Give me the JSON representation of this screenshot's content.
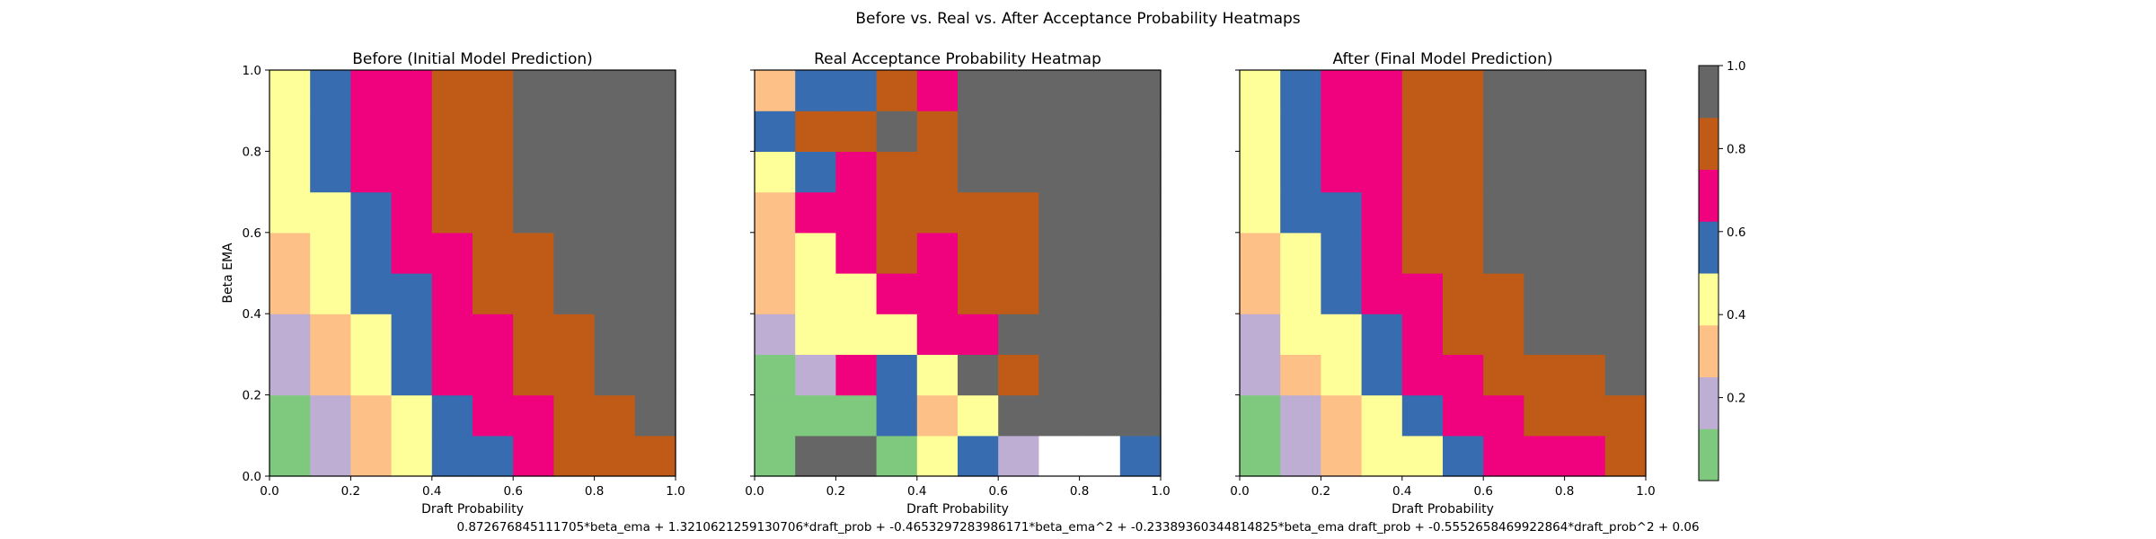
{
  "figure": {
    "suptitle": "Before vs. Real vs. After Acceptance Probability Heatmaps",
    "footer": "0.872676845111705*beta_ema + 1.3210621259130706*draft_prob + -0.4653297283986171*beta_ema^2 + -0.23389360344814825*beta_ema draft_prob + -0.5552658469922864*draft_prob^2 + 0.06"
  },
  "colorbar": {
    "ticks": [
      0.2,
      0.4,
      0.6,
      0.8,
      1.0
    ],
    "tick_labels": [
      "0.2",
      "0.4",
      "0.6",
      "0.8",
      "1.0"
    ],
    "bins": [
      0.0,
      0.125,
      0.25,
      0.375,
      0.5,
      0.625,
      0.75,
      0.875,
      1.0
    ],
    "colors": [
      "#7fc97f",
      "#beaed4",
      "#fdc086",
      "#ffff99",
      "#386cb0",
      "#f0027f",
      "#bf5b17",
      "#666666"
    ]
  },
  "chart_data": [
    {
      "type": "heatmap",
      "title": "Before (Initial Model Prediction)",
      "xlabel": "Draft Probability",
      "ylabel": "Beta EMA",
      "xlim": [
        0,
        1
      ],
      "ylim": [
        0,
        1
      ],
      "x_ticks": [
        "0.0",
        "0.2",
        "0.4",
        "0.6",
        "0.8",
        "1.0"
      ],
      "y_ticks": [
        "0.0",
        "0.2",
        "0.4",
        "0.6",
        "0.8",
        "1.0"
      ],
      "grid": false,
      "rows_bottom_to_top": [
        [
          0.05,
          0.2,
          0.3,
          0.4,
          0.55,
          0.55,
          0.7,
          0.8,
          0.8,
          0.8
        ],
        [
          0.05,
          0.2,
          0.3,
          0.4,
          0.55,
          0.7,
          0.7,
          0.8,
          0.8,
          0.95
        ],
        [
          0.2,
          0.3,
          0.4,
          0.55,
          0.7,
          0.7,
          0.8,
          0.8,
          0.95,
          0.95
        ],
        [
          0.2,
          0.3,
          0.4,
          0.55,
          0.7,
          0.7,
          0.8,
          0.8,
          0.95,
          0.95
        ],
        [
          0.3,
          0.4,
          0.55,
          0.55,
          0.7,
          0.8,
          0.8,
          0.95,
          0.95,
          0.95
        ],
        [
          0.3,
          0.4,
          0.55,
          0.7,
          0.7,
          0.8,
          0.8,
          0.95,
          0.95,
          0.95
        ],
        [
          0.4,
          0.4,
          0.55,
          0.7,
          0.8,
          0.8,
          0.95,
          0.95,
          0.95,
          0.95
        ],
        [
          0.4,
          0.55,
          0.7,
          0.7,
          0.8,
          0.8,
          0.95,
          0.95,
          0.95,
          0.95
        ],
        [
          0.4,
          0.55,
          0.7,
          0.7,
          0.8,
          0.8,
          0.95,
          0.95,
          0.95,
          0.95
        ],
        [
          0.4,
          0.55,
          0.7,
          0.7,
          0.8,
          0.8,
          0.95,
          0.95,
          0.95,
          0.95
        ]
      ]
    },
    {
      "type": "heatmap",
      "title": "Real Acceptance Probability Heatmap",
      "xlabel": "Draft Probability",
      "ylabel": "",
      "xlim": [
        0,
        1
      ],
      "ylim": [
        0,
        1
      ],
      "x_ticks": [
        "0.0",
        "0.2",
        "0.4",
        "0.6",
        "0.8",
        "1.0"
      ],
      "y_ticks": [],
      "grid": false,
      "rows_bottom_to_top": [
        [
          0.05,
          0.95,
          0.95,
          0.05,
          0.4,
          0.55,
          0.2,
          1.0,
          1.0,
          0.55
        ],
        [
          0.05,
          0.05,
          0.05,
          0.55,
          0.3,
          0.4,
          0.95,
          0.95,
          0.95,
          0.95
        ],
        [
          0.05,
          0.2,
          0.7,
          0.55,
          0.4,
          0.95,
          0.8,
          0.95,
          0.95,
          0.95
        ],
        [
          0.2,
          0.4,
          0.4,
          0.4,
          0.7,
          0.7,
          0.95,
          0.95,
          0.95,
          0.95
        ],
        [
          0.3,
          0.4,
          0.4,
          0.7,
          0.7,
          0.8,
          0.8,
          0.95,
          0.95,
          0.95
        ],
        [
          0.3,
          0.4,
          0.7,
          0.8,
          0.7,
          0.8,
          0.8,
          0.95,
          0.95,
          0.95
        ],
        [
          0.3,
          0.7,
          0.7,
          0.8,
          0.8,
          0.8,
          0.8,
          0.95,
          0.95,
          0.95
        ],
        [
          0.4,
          0.55,
          0.7,
          0.8,
          0.8,
          0.95,
          0.95,
          0.95,
          0.95,
          0.95
        ],
        [
          0.55,
          0.8,
          0.8,
          0.95,
          0.8,
          0.95,
          0.95,
          0.95,
          0.95,
          0.95
        ],
        [
          0.3,
          0.55,
          0.55,
          0.8,
          0.7,
          0.95,
          0.95,
          0.95,
          0.95,
          0.95
        ]
      ]
    },
    {
      "type": "heatmap",
      "title": "After (Final Model Prediction)",
      "xlabel": "Draft Probability",
      "ylabel": "",
      "xlim": [
        0,
        1
      ],
      "ylim": [
        0,
        1
      ],
      "x_ticks": [
        "0.0",
        "0.2",
        "0.4",
        "0.6",
        "0.8",
        "1.0"
      ],
      "y_ticks": [],
      "grid": false,
      "rows_bottom_to_top": [
        [
          0.05,
          0.2,
          0.3,
          0.4,
          0.4,
          0.55,
          0.7,
          0.7,
          0.7,
          0.8
        ],
        [
          0.05,
          0.2,
          0.3,
          0.4,
          0.55,
          0.7,
          0.7,
          0.8,
          0.8,
          0.8
        ],
        [
          0.2,
          0.3,
          0.4,
          0.55,
          0.7,
          0.7,
          0.8,
          0.8,
          0.8,
          0.95
        ],
        [
          0.2,
          0.4,
          0.4,
          0.55,
          0.7,
          0.8,
          0.8,
          0.95,
          0.95,
          0.95
        ],
        [
          0.3,
          0.4,
          0.55,
          0.7,
          0.7,
          0.8,
          0.8,
          0.95,
          0.95,
          0.95
        ],
        [
          0.3,
          0.4,
          0.55,
          0.7,
          0.8,
          0.8,
          0.95,
          0.95,
          0.95,
          0.95
        ],
        [
          0.4,
          0.55,
          0.55,
          0.7,
          0.8,
          0.8,
          0.95,
          0.95,
          0.95,
          0.95
        ],
        [
          0.4,
          0.55,
          0.7,
          0.7,
          0.8,
          0.8,
          0.95,
          0.95,
          0.95,
          0.95
        ],
        [
          0.4,
          0.55,
          0.7,
          0.7,
          0.8,
          0.8,
          0.95,
          0.95,
          0.95,
          0.95
        ],
        [
          0.4,
          0.55,
          0.7,
          0.7,
          0.8,
          0.8,
          0.95,
          0.95,
          0.95,
          0.95
        ]
      ]
    }
  ]
}
